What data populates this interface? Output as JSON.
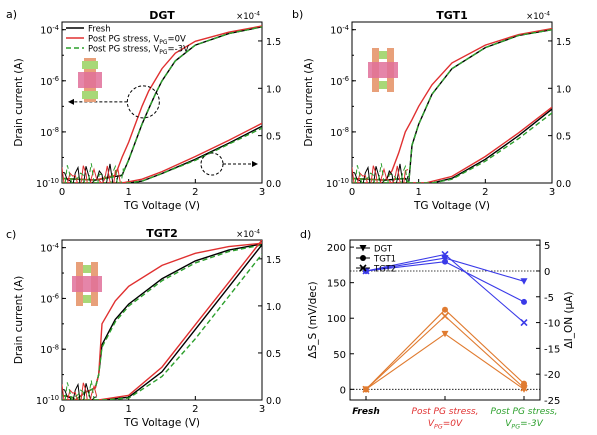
{
  "chart_data": [
    {
      "panel": "a)",
      "title": "DGT",
      "type": "line",
      "xlabel": "TG Voltage (V)",
      "ylabel": "Drain current (A)",
      "xlim": [
        0,
        3
      ],
      "x_ticks": [
        "0",
        "1",
        "2",
        "3"
      ],
      "y_log_ticks": [
        "10^{-4}",
        "10^{-6}",
        "10^{-8}",
        "10^{-10}"
      ],
      "ylim_log": [
        1e-10,
        0.0002
      ],
      "y2_multiplier": "×10^{-4}",
      "y2_ticks": [
        "0.0",
        "0.5",
        "1.0",
        "1.5"
      ],
      "y2lim": [
        0,
        1.7
      ],
      "legend": [
        "Fresh",
        "Post PG stress, V_{PG}=0V",
        "Post PG stress, V_{PG}=-3V"
      ],
      "legend_location": "upper left",
      "annotation": "dashed circles with arrows pointing to log (left) and linear (right) axes",
      "series": [
        {
          "name": "Fresh",
          "axis": "log",
          "color": "#000000",
          "style": "solid",
          "x": [
            0,
            0.5,
            0.9,
            1.0,
            1.1,
            1.2,
            1.3,
            1.4,
            1.5,
            1.7,
            2.0,
            2.5,
            3.0
          ],
          "y": [
            1.5e-10,
            1.3e-10,
            2e-10,
            8e-10,
            4e-09,
            2e-08,
            8e-08,
            3e-07,
            1e-06,
            6e-06,
            2.5e-05,
            7e-05,
            0.00013
          ]
        },
        {
          "name": "Post PG stress, V_{PG}=0V",
          "axis": "log",
          "color": "#e03030",
          "style": "solid",
          "x": [
            0,
            0.5,
            0.8,
            0.9,
            1.0,
            1.1,
            1.2,
            1.3,
            1.5,
            1.7,
            2.0,
            2.5,
            3.0
          ],
          "y": [
            1.5e-10,
            1.3e-10,
            2e-10,
            1e-09,
            4e-09,
            2e-08,
            1e-07,
            4e-07,
            3e-06,
            1.2e-05,
            3.5e-05,
            8e-05,
            0.00014
          ]
        },
        {
          "name": "Post PG stress, V_{PG}=-3V",
          "axis": "log",
          "color": "#2ca02c",
          "style": "dashed",
          "x": [
            0,
            0.5,
            0.9,
            1.0,
            1.1,
            1.2,
            1.3,
            1.4,
            1.5,
            1.7,
            2.0,
            2.5,
            3.0
          ],
          "y": [
            1.5e-10,
            1.3e-10,
            2e-10,
            8e-10,
            4e-09,
            2e-08,
            8e-08,
            3e-07,
            1e-06,
            6e-06,
            2.5e-05,
            7e-05,
            0.00013
          ]
        },
        {
          "name": "Fresh",
          "axis": "linear",
          "color": "#000000",
          "style": "solid",
          "x": [
            0,
            1.0,
            1.2,
            1.5,
            2.0,
            2.5,
            3.0
          ],
          "y": [
            0,
            0,
            0.02,
            0.1,
            0.25,
            0.42,
            0.6
          ]
        },
        {
          "name": "Post PG stress, V_{PG}=0V",
          "axis": "linear",
          "color": "#e03030",
          "style": "solid",
          "x": [
            0,
            0.9,
            1.2,
            1.5,
            2.0,
            2.5,
            3.0
          ],
          "y": [
            0,
            0,
            0.04,
            0.12,
            0.28,
            0.45,
            0.63
          ]
        },
        {
          "name": "Post PG stress, V_{PG}=-3V",
          "axis": "linear",
          "color": "#2ca02c",
          "style": "dashed",
          "x": [
            0,
            1.0,
            1.2,
            1.5,
            2.0,
            2.5,
            3.0
          ],
          "y": [
            0,
            0,
            0.02,
            0.1,
            0.24,
            0.41,
            0.58
          ]
        }
      ]
    },
    {
      "panel": "b)",
      "title": "TGT1",
      "type": "line",
      "xlabel": "TG Voltage (V)",
      "ylabel": "Drain current (A)",
      "xlim": [
        0,
        3
      ],
      "x_ticks": [
        "0",
        "1",
        "2",
        "3"
      ],
      "y_log_ticks": [
        "10^{-4}",
        "10^{-6}",
        "10^{-8}",
        "10^{-10}"
      ],
      "y2_multiplier": "×10^{-4}",
      "y2_ticks": [
        "0.0",
        "0.5",
        "1.0",
        "1.5"
      ],
      "series": [
        {
          "name": "Fresh",
          "axis": "log",
          "color": "#000000",
          "style": "solid",
          "x": [
            0,
            0.5,
            0.8,
            0.85,
            0.9,
            1.0,
            1.2,
            1.5,
            2.0,
            2.5,
            3.0
          ],
          "y": [
            1.5e-10,
            1.3e-10,
            1.5e-10,
            1e-10,
            3e-09,
            2e-08,
            3e-07,
            3e-06,
            2e-05,
            6e-05,
            0.0001
          ]
        },
        {
          "name": "Post PG stress, V_{PG}=0V",
          "axis": "log",
          "color": "#e03030",
          "style": "solid",
          "x": [
            0,
            0.5,
            0.6,
            0.7,
            0.8,
            0.9,
            1.0,
            1.2,
            1.5,
            2.0,
            2.5,
            3.0
          ],
          "y": [
            1.5e-10,
            1.3e-10,
            3e-10,
            1.5e-09,
            1e-08,
            3e-08,
            1e-07,
            7e-07,
            5e-06,
            2.5e-05,
            6.5e-05,
            0.00011
          ]
        },
        {
          "name": "Post PG stress, V_{PG}=-3V",
          "axis": "log",
          "color": "#2ca02c",
          "style": "dashed",
          "x": [
            0,
            0.5,
            0.8,
            0.85,
            0.9,
            1.0,
            1.2,
            1.5,
            2.0,
            2.5,
            3.0
          ],
          "y": [
            1.5e-10,
            1.3e-10,
            1.5e-10,
            1e-10,
            3e-09,
            2e-08,
            3e-07,
            3e-06,
            2e-05,
            6e-05,
            0.0001
          ]
        },
        {
          "name": "Fresh",
          "axis": "linear",
          "color": "#000000",
          "style": "solid",
          "x": [
            0,
            1.2,
            1.5,
            2.0,
            2.5,
            3.0
          ],
          "y": [
            0,
            0,
            0.05,
            0.25,
            0.5,
            0.78
          ]
        },
        {
          "name": "Post PG stress, V_{PG}=0V",
          "axis": "linear",
          "color": "#e03030",
          "style": "solid",
          "x": [
            0,
            1.1,
            1.5,
            2.0,
            2.5,
            3.0
          ],
          "y": [
            0,
            0,
            0.07,
            0.28,
            0.53,
            0.8
          ]
        },
        {
          "name": "Post PG stress, V_{PG}=-3V",
          "axis": "linear",
          "color": "#2ca02c",
          "style": "dashed",
          "x": [
            0,
            1.2,
            1.5,
            2.0,
            2.5,
            3.0
          ],
          "y": [
            0,
            0,
            0.04,
            0.23,
            0.47,
            0.74
          ]
        }
      ]
    },
    {
      "panel": "c)",
      "title": "TGT2",
      "type": "line",
      "xlabel": "TG Voltage (V)",
      "ylabel": "Drain current (A)",
      "xlim": [
        0,
        3
      ],
      "x_ticks": [
        "0",
        "1",
        "2",
        "3"
      ],
      "y_log_ticks": [
        "10^{-4}",
        "10^{-6}",
        "10^{-8}",
        "10^{-10}"
      ],
      "y2_multiplier": "×10^{-4}",
      "y2_ticks": [
        "0.0",
        "0.5",
        "1.0",
        "1.5"
      ],
      "series": [
        {
          "name": "Fresh",
          "axis": "log",
          "color": "#000000",
          "style": "solid",
          "x": [
            0,
            0.15,
            0.2,
            0.35,
            0.5,
            0.55,
            0.6,
            0.8,
            1.0,
            1.5,
            2.0,
            2.5,
            3.0
          ],
          "y": [
            1.5e-10,
            1.3e-10,
            1e-10,
            2e-10,
            3e-10,
            1e-09,
            1.5e-08,
            1.5e-07,
            6e-07,
            6e-06,
            3e-05,
            8e-05,
            0.00014
          ]
        },
        {
          "name": "Post PG stress, V_{PG}=0V",
          "axis": "log",
          "color": "#e03030",
          "style": "solid",
          "x": [
            0,
            0.15,
            0.2,
            0.35,
            0.5,
            0.55,
            0.6,
            0.8,
            1.0,
            1.5,
            2.0,
            2.5,
            3.0
          ],
          "y": [
            1.5e-10,
            1.3e-10,
            1e-10,
            2e-10,
            3e-10,
            1e-09,
            1e-07,
            8e-07,
            3e-06,
            2e-05,
            6e-05,
            0.00011,
            0.00015
          ]
        },
        {
          "name": "Post PG stress, V_{PG}=-3V",
          "axis": "log",
          "color": "#2ca02c",
          "style": "dashed",
          "x": [
            0,
            0.15,
            0.2,
            0.35,
            0.5,
            0.55,
            0.6,
            0.8,
            1.0,
            1.5,
            2.0,
            2.5,
            3.0
          ],
          "y": [
            1.5e-10,
            1.3e-10,
            1e-10,
            2e-10,
            3e-10,
            1e-09,
            1.2e-08,
            1.2e-07,
            5e-07,
            5e-06,
            2.5e-05,
            7e-05,
            0.00013
          ]
        },
        {
          "name": "Fresh",
          "axis": "linear",
          "color": "#000000",
          "style": "solid",
          "x": [
            0,
            0.6,
            1.0,
            1.5,
            2.0,
            2.5,
            3.0
          ],
          "y": [
            0,
            0,
            0.03,
            0.3,
            0.75,
            1.2,
            1.65
          ]
        },
        {
          "name": "Post PG stress, V_{PG}=0V",
          "axis": "linear",
          "color": "#e03030",
          "style": "solid",
          "x": [
            0,
            0.55,
            1.0,
            1.5,
            2.0,
            2.5,
            3.0
          ],
          "y": [
            0,
            0,
            0.05,
            0.35,
            0.8,
            1.25,
            1.7
          ]
        },
        {
          "name": "Post PG stress, V_{PG}=-3V",
          "axis": "linear",
          "color": "#2ca02c",
          "style": "dashed",
          "x": [
            0,
            0.6,
            1.0,
            1.5,
            2.0,
            2.5,
            3.0
          ],
          "y": [
            0,
            0,
            0.02,
            0.25,
            0.65,
            1.1,
            1.55
          ]
        }
      ]
    },
    {
      "panel": "d)",
      "type": "line",
      "categories": [
        "Fresh",
        "Post PG stress, V_{PG}=0V",
        "Post PG stress, V_{PG}=-3V"
      ],
      "category_colors": [
        "#000000",
        "#e03030",
        "#2ca02c"
      ],
      "ylabel": "ΔS_S (mV/dec)",
      "y2label": "ΔI_ON (μA)",
      "ylim": [
        -15,
        210
      ],
      "y_ticks": [
        "0",
        "50",
        "100",
        "150",
        "200"
      ],
      "y2lim": [
        -25,
        6
      ],
      "y2_ticks": [
        "5",
        "0",
        "-5",
        "-10",
        "-15",
        "-20",
        "-25"
      ],
      "legend": [
        "DGT",
        "TGT1",
        "TGT2"
      ],
      "legend_location": "upper left",
      "reference_lines": [
        {
          "axis": "left",
          "y": 0
        },
        {
          "axis": "right",
          "y": 0
        }
      ],
      "series": [
        {
          "name": "DGT",
          "axis": "left",
          "color": "#e07b30",
          "marker": "triangle-down",
          "values": [
            0,
            78,
            0
          ]
        },
        {
          "name": "TGT1",
          "axis": "left",
          "color": "#e07b30",
          "marker": "circle",
          "values": [
            0,
            112,
            8
          ]
        },
        {
          "name": "TGT2",
          "axis": "left",
          "color": "#e07b30",
          "marker": "x",
          "values": [
            0,
            103,
            2
          ]
        },
        {
          "name": "DGT",
          "axis": "right",
          "color": "#3a3ae8",
          "marker": "triangle-down",
          "values": [
            0,
            2.5,
            -2
          ]
        },
        {
          "name": "TGT1",
          "axis": "right",
          "color": "#3a3ae8",
          "marker": "circle",
          "values": [
            0,
            1.8,
            -6
          ]
        },
        {
          "name": "TGT2",
          "axis": "right",
          "color": "#3a3ae8",
          "marker": "x",
          "values": [
            0,
            3.2,
            -10
          ]
        }
      ]
    }
  ]
}
